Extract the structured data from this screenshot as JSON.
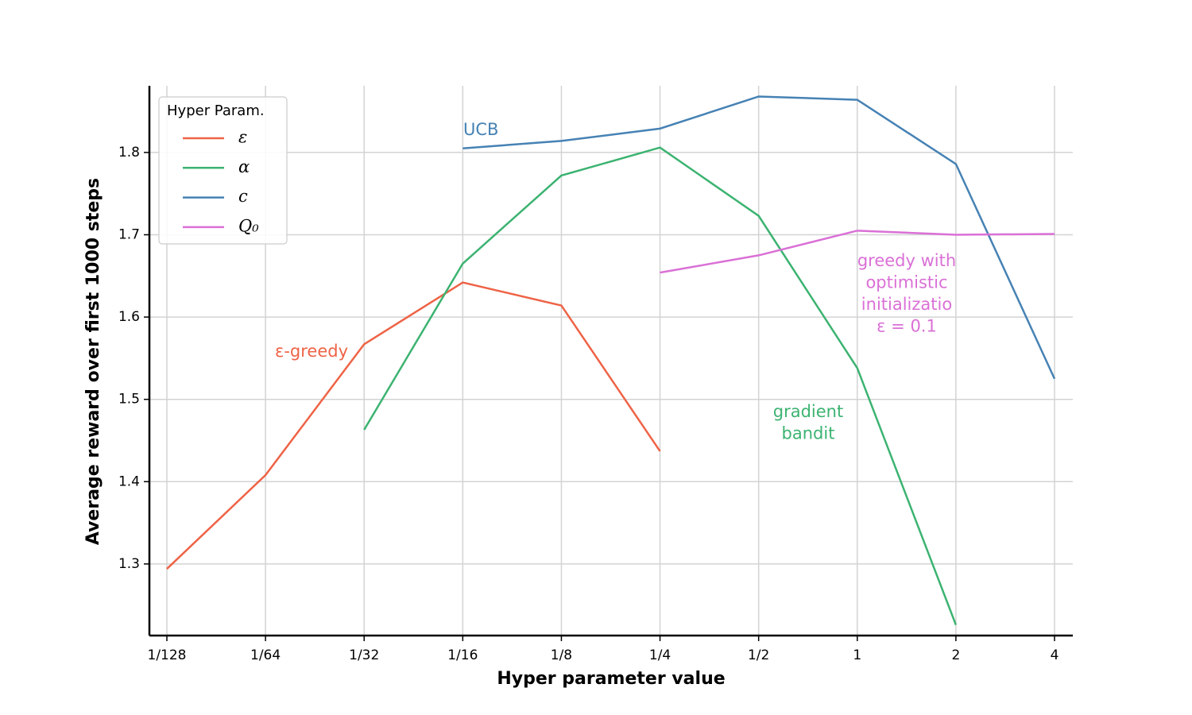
{
  "chart_data": {
    "type": "line",
    "xlabel": "Hyper parameter value",
    "ylabel": "Average reward over first 1000 steps",
    "categories": [
      "1/128",
      "1/64",
      "1/32",
      "1/16",
      "1/8",
      "1/4",
      "1/2",
      "1",
      "2",
      "4"
    ],
    "series": [
      {
        "name": "ε",
        "color": "#ee6346",
        "values": [
          1.294,
          1.408,
          1.567,
          1.642,
          1.614,
          1.437,
          null,
          null,
          null,
          null
        ]
      },
      {
        "name": "α",
        "color": "#3cb371",
        "values": [
          null,
          null,
          1.463,
          1.665,
          1.772,
          1.806,
          1.723,
          1.538,
          1.226,
          null
        ]
      },
      {
        "name": "c",
        "color": "#4682b4",
        "values": [
          null,
          null,
          null,
          1.805,
          1.814,
          1.829,
          1.868,
          1.864,
          1.786,
          1.525
        ]
      },
      {
        "name": "Q₀",
        "color": "#da70d6",
        "values": [
          null,
          null,
          null,
          null,
          null,
          1.654,
          1.675,
          1.705,
          1.7,
          1.701
        ]
      }
    ],
    "ylim": [
      1.213,
      1.881
    ],
    "yticks": [
      1.3,
      1.4,
      1.5,
      1.6,
      1.7,
      1.8
    ],
    "grid": true,
    "legend": {
      "title": "Hyper Param.",
      "position": "upper left"
    },
    "annotations": [
      {
        "lines": [
          "UCB"
        ],
        "color": "#4682b4"
      },
      {
        "lines": [
          "ε-greedy"
        ],
        "color": "#ee6346"
      },
      {
        "lines": [
          "gradient",
          "bandit"
        ],
        "color": "#3cb371"
      },
      {
        "lines": [
          "greedy with",
          "optimistic",
          "initializatio",
          "ε = 0.1"
        ],
        "color": "#da70d6"
      }
    ]
  }
}
